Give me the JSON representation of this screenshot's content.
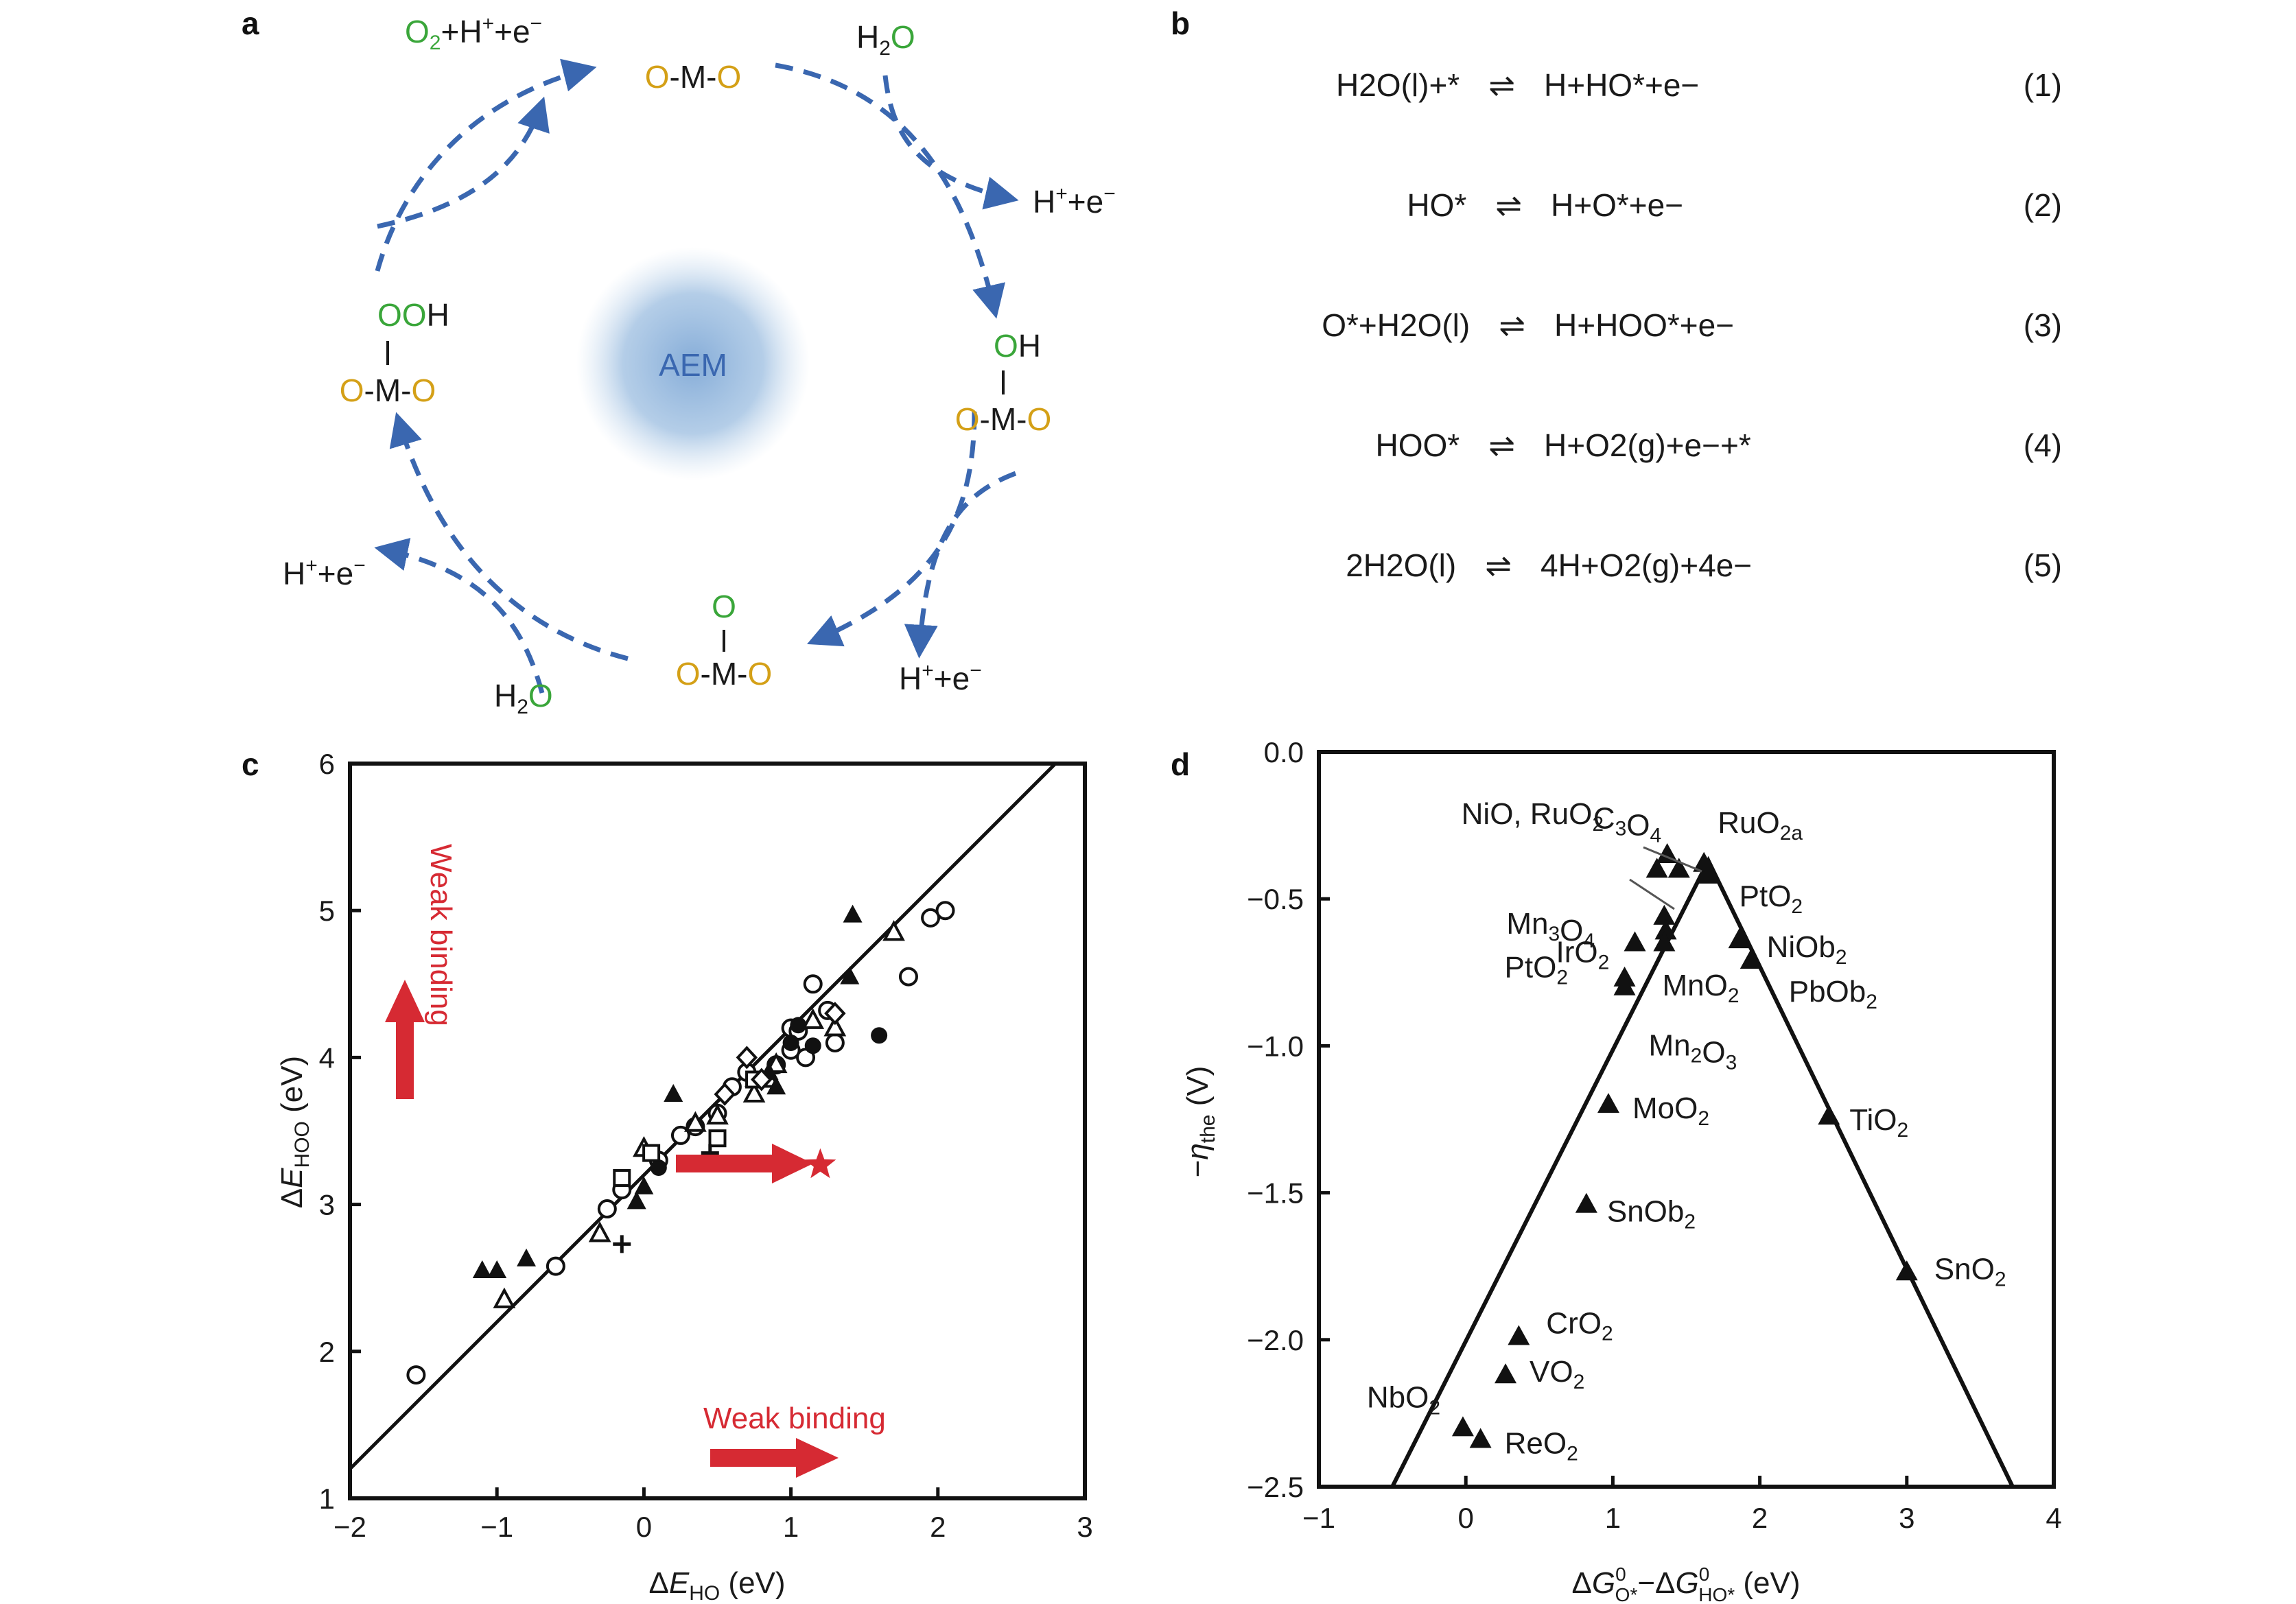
{
  "panels": {
    "a": "a",
    "b": "b",
    "c": "c",
    "d": "d"
  },
  "panel_a": {
    "center": "AEM",
    "states": {
      "top": "O-M-O",
      "right_top": "OH",
      "right": "O-M-O",
      "bottom_top": "O",
      "bottom": "O-M-O",
      "left_top": "OOH",
      "left": "O-M-O"
    },
    "species": {
      "o2": "O2+H+e−",
      "h2o_in_1": "H2O",
      "h_e_1": "H+e−",
      "h_e_2": "H+e−",
      "h_e_3": "H+e−",
      "h2o_in_2": "H2O"
    }
  },
  "panel_b": {
    "equations": [
      {
        "lhs": "H2O(l)+*",
        "rhs": "H+HO*+e−",
        "num": "(1)"
      },
      {
        "lhs": "HO*",
        "rhs": "H+O*+e−",
        "num": "(2)"
      },
      {
        "lhs": "O*+H2O(l)",
        "rhs": "H+HOO*+e−",
        "num": "(3)"
      },
      {
        "lhs": "HOO*",
        "rhs": "H+O2(g)+e−+*",
        "num": "(4)"
      },
      {
        "lhs": "2H2O(l)",
        "rhs": "4H+O2(g)+4e−",
        "num": "(5)"
      }
    ],
    "arrow_symbol": "⇌"
  },
  "chart_data": [
    {
      "panel": "c",
      "type": "scatter",
      "xlabel": "ΔE_HO (eV)",
      "ylabel": "ΔE_HOO (eV)",
      "xlim": [
        -2,
        3
      ],
      "ylim": [
        1,
        6
      ],
      "xticks": [
        "−2",
        "−1",
        "0",
        "1",
        "2",
        "3"
      ],
      "yticks": [
        "1",
        "2",
        "3",
        "4",
        "5",
        "6"
      ],
      "fit_line": {
        "x": [
          -2,
          2.8
        ],
        "y": [
          1.2,
          6.0
        ]
      },
      "annotations": [
        "Weak binding",
        "Weak binding"
      ],
      "star": {
        "x": 1.2,
        "y": 3.27
      },
      "series": [
        {
          "marker": "open-circle",
          "x": [
            -1.55,
            -0.6,
            -0.25,
            -0.15,
            0.1,
            0.25,
            0.35,
            0.5,
            0.6,
            0.7,
            0.9,
            1.0,
            1.1,
            1.15,
            1.25,
            1.3,
            1.0,
            1.05,
            1.8,
            1.95,
            2.05
          ],
          "y": [
            1.84,
            2.58,
            2.97,
            3.1,
            3.3,
            3.47,
            3.53,
            3.62,
            3.8,
            3.9,
            3.95,
            4.05,
            4.0,
            4.5,
            4.32,
            4.1,
            4.2,
            4.18,
            4.55,
            4.95,
            5.0
          ]
        },
        {
          "marker": "filled-circle",
          "x": [
            0.1,
            0.9,
            1.0,
            1.05,
            1.15,
            1.6
          ],
          "y": [
            3.25,
            3.95,
            4.1,
            4.22,
            4.08,
            4.15
          ]
        },
        {
          "marker": "open-triangle",
          "x": [
            -0.95,
            -0.3,
            0.0,
            0.35,
            0.5,
            0.75,
            0.85,
            0.9,
            1.15,
            1.3,
            1.7
          ],
          "y": [
            2.35,
            2.8,
            3.38,
            3.55,
            3.6,
            3.75,
            3.85,
            3.95,
            4.25,
            4.2,
            4.85
          ]
        },
        {
          "marker": "filled-triangle",
          "x": [
            -1.1,
            -1.0,
            -0.8,
            -0.05,
            0.0,
            0.2,
            0.75,
            0.85,
            0.9,
            1.4,
            1.42
          ],
          "y": [
            2.55,
            2.55,
            2.63,
            3.02,
            3.12,
            3.75,
            3.85,
            3.9,
            3.8,
            4.55,
            4.97
          ]
        },
        {
          "marker": "open-square",
          "x": [
            -0.15,
            0.05,
            0.5,
            0.75
          ],
          "y": [
            3.18,
            3.35,
            3.45,
            3.85
          ]
        },
        {
          "marker": "open-diamond",
          "x": [
            0.55,
            0.8,
            0.7,
            1.3
          ],
          "y": [
            3.75,
            3.85,
            4.0,
            4.3
          ]
        },
        {
          "marker": "plus",
          "x": [
            -0.15,
            0.45
          ],
          "y": [
            2.73,
            3.35
          ]
        }
      ]
    },
    {
      "panel": "d",
      "type": "scatter",
      "xlabel": "ΔG⁰O* − ΔG⁰HO* (eV)",
      "ylabel": "−η_the (V)",
      "xlim": [
        -1,
        4
      ],
      "ylim": [
        -2.5,
        0.0
      ],
      "xticks": [
        "−1",
        "0",
        "1",
        "2",
        "3",
        "4"
      ],
      "yticks": [
        "0.0",
        "−0.5",
        "−1.0",
        "−1.5",
        "−2.0",
        "−2.5"
      ],
      "volcano": {
        "x": [
          -0.5,
          1.65,
          3.72
        ],
        "y": [
          -2.5,
          -0.37,
          -2.5
        ]
      },
      "points": [
        {
          "label": "NiO, RuO2",
          "x": 1.37,
          "y": -0.35
        },
        {
          "label": "C3O4",
          "x": 1.45,
          "y": -0.4
        },
        {
          "label": "RuO2a",
          "x": 1.62,
          "y": -0.38
        },
        {
          "label": "",
          "x": 1.3,
          "y": -0.4
        },
        {
          "label": "Mn3O4",
          "x": 1.35,
          "y": -0.56
        },
        {
          "label": "IrO2",
          "x": 1.36,
          "y": -0.61
        },
        {
          "label": "PtO2",
          "x": 1.65,
          "y": -0.42
        },
        {
          "label": "PtO2",
          "x": 1.15,
          "y": -0.65
        },
        {
          "label": "",
          "x": 1.35,
          "y": -0.65
        },
        {
          "label": "NiOb2",
          "x": 1.86,
          "y": -0.64
        },
        {
          "label": "PbOb2",
          "x": 1.94,
          "y": -0.71
        },
        {
          "label": "MnO2",
          "x": 1.08,
          "y": -0.77
        },
        {
          "label": "Mn2O3",
          "x": 1.08,
          "y": -0.8
        },
        {
          "label": "MoO2",
          "x": 0.97,
          "y": -1.2
        },
        {
          "label": "TiO2",
          "x": 2.47,
          "y": -1.24
        },
        {
          "label": "SnOb2",
          "x": 0.82,
          "y": -1.54
        },
        {
          "label": "SnO2",
          "x": 3.0,
          "y": -1.77
        },
        {
          "label": "CrO2",
          "x": 0.36,
          "y": -1.99
        },
        {
          "label": "VO2",
          "x": 0.27,
          "y": -2.12
        },
        {
          "label": "NbO2",
          "x": -0.02,
          "y": -2.3
        },
        {
          "label": "ReO2",
          "x": 0.1,
          "y": -2.34
        }
      ]
    }
  ],
  "colors": {
    "arrow_blue": "#3a67b0",
    "red": "#d62a33",
    "green": "#3aa63a",
    "gold": "#d4a017"
  }
}
